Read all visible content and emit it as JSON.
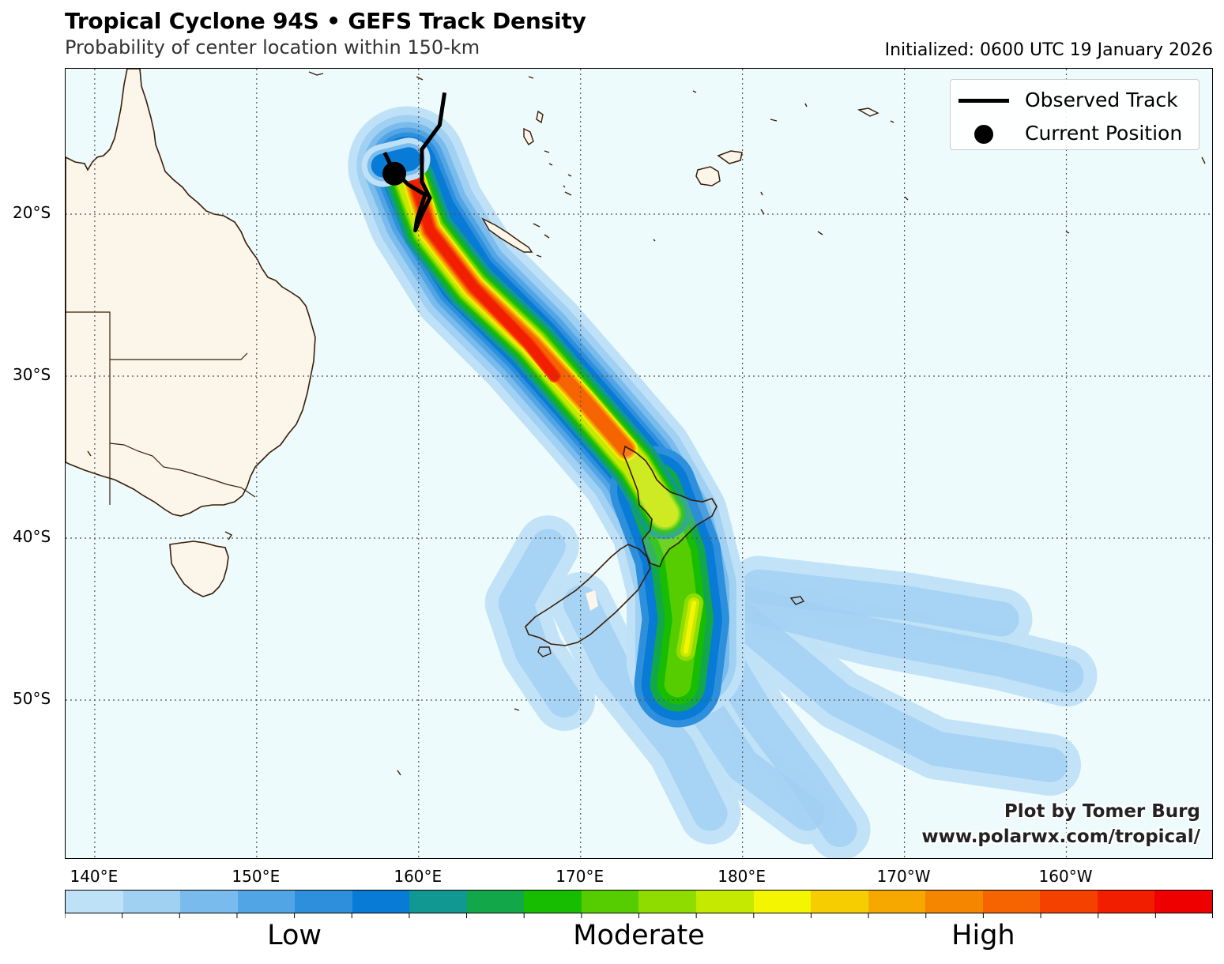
{
  "header": {
    "title": "Tropical Cyclone 94S • GEFS Track Density",
    "subtitle": "Probability of center location within 150-km",
    "initialized": "Initialized: 0600 UTC 19 January 2026"
  },
  "axes": {
    "lat_labels": [
      "20°S",
      "30°S",
      "40°S",
      "50°S"
    ],
    "lon_labels": [
      "140°E",
      "150°E",
      "160°E",
      "170°E",
      "180°E",
      "170°W",
      "160°W"
    ],
    "lat_values": [
      -20,
      -30,
      -40,
      -50
    ],
    "lon_values": [
      140,
      150,
      160,
      170,
      180,
      190,
      200
    ],
    "lat_range": [
      -59,
      -10
    ],
    "lon_range": [
      138.2,
      209.1
    ],
    "grid": "dotted"
  },
  "legend": {
    "observed_track": "Observed Track",
    "current_position": "Current Position",
    "placement": "top-right"
  },
  "credit": {
    "line1": "Plot by Tomer Burg",
    "line2": "www.polarwx.com/tropical/"
  },
  "colorbar": {
    "colors": [
      "#bfe1f7",
      "#a0d0f2",
      "#78bbec",
      "#52a5e4",
      "#2e90dd",
      "#087bd6",
      "#129893",
      "#12a84a",
      "#17bd00",
      "#55cd00",
      "#8fdc00",
      "#c6e900",
      "#f4f500",
      "#f6cd00",
      "#f6a800",
      "#f58600",
      "#f56400",
      "#f54100",
      "#f21e00",
      "#ee0000"
    ],
    "labels": [
      "Low",
      "Moderate",
      "High"
    ]
  },
  "colors": {
    "ocean": "#eefbfd",
    "land": "#fbf5ea",
    "coastline": "#3a1e08",
    "track": "#000000"
  },
  "chart_data": {
    "type": "map",
    "current_position": {
      "lat": -17.5,
      "lon": 158.5
    },
    "observed_track": [
      {
        "lat": -12.5,
        "lon": 161.6
      },
      {
        "lat": -14.5,
        "lon": 161.3
      },
      {
        "lat": -16.0,
        "lon": 160.2
      },
      {
        "lat": -18.0,
        "lon": 160.2
      },
      {
        "lat": -19.0,
        "lon": 160.7
      },
      {
        "lat": -20.0,
        "lon": 160.2
      },
      {
        "lat": -21.0,
        "lon": 159.8
      },
      {
        "lat": -20.3,
        "lon": 159.9
      },
      {
        "lat": -18.8,
        "lon": 160.4
      },
      {
        "lat": -18.2,
        "lon": 159.4
      },
      {
        "lat": -17.4,
        "lon": 158.5
      },
      {
        "lat": -16.2,
        "lon": 157.9
      }
    ],
    "density_centerline": [
      {
        "lat": -17.0,
        "lon": 159.3
      },
      {
        "lat": -20.0,
        "lon": 160.5
      },
      {
        "lat": -24.0,
        "lon": 163.0
      },
      {
        "lat": -28.0,
        "lon": 167.0
      },
      {
        "lat": -32.0,
        "lon": 170.5
      },
      {
        "lat": -35.5,
        "lon": 173.5
      },
      {
        "lat": -39.0,
        "lon": 175.5
      },
      {
        "lat": -43.0,
        "lon": 176.5
      },
      {
        "lat": -47.5,
        "lon": 176.5
      }
    ],
    "density_peak_region": "High near 18°S–34°S along track; Moderate over New Zealand to ~48°S; Low fanning southeast to ~58°S"
  }
}
